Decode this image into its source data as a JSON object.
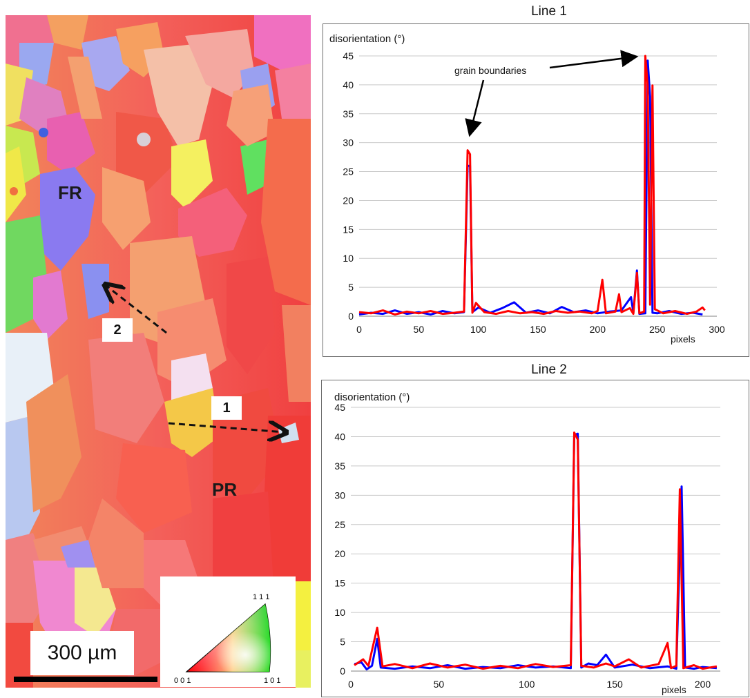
{
  "micrograph": {
    "labels": {
      "fr": "FR",
      "pr": "PR",
      "arrow1": "1",
      "arrow2": "2"
    },
    "scale_bar": "300 µm",
    "ipf_key": {
      "corner_001": "0 0 1",
      "corner_101": "1 0 1",
      "corner_111": "1 1 1"
    }
  },
  "chart_data": [
    {
      "type": "line",
      "title": "Line 1",
      "ylabel": "disorientation (°)",
      "xlabel": "pixels",
      "xlim": [
        0,
        300
      ],
      "ylim": [
        0,
        45
      ],
      "xticks": [
        0,
        50,
        100,
        150,
        200,
        250,
        300
      ],
      "yticks": [
        0,
        5,
        10,
        15,
        20,
        25,
        30,
        35,
        40,
        45
      ],
      "grid": true,
      "annotation": "grain boundaries",
      "series": [
        {
          "color": "#0000ff",
          "points": [
            [
              0,
              0.3
            ],
            [
              10,
              0.6
            ],
            [
              20,
              0.4
            ],
            [
              30,
              1.0
            ],
            [
              40,
              0.4
            ],
            [
              50,
              0.7
            ],
            [
              60,
              0.3
            ],
            [
              70,
              0.9
            ],
            [
              80,
              0.5
            ],
            [
              88,
              0.7
            ],
            [
              91,
              26
            ],
            [
              93,
              26
            ],
            [
              95,
              0.7
            ],
            [
              100,
              1.5
            ],
            [
              110,
              0.6
            ],
            [
              120,
              1.4
            ],
            [
              130,
              2.4
            ],
            [
              140,
              0.6
            ],
            [
              150,
              1.0
            ],
            [
              160,
              0.5
            ],
            [
              170,
              1.6
            ],
            [
              180,
              0.7
            ],
            [
              190,
              1.0
            ],
            [
              200,
              0.5
            ],
            [
              210,
              0.8
            ],
            [
              220,
              1.0
            ],
            [
              228,
              3.3
            ],
            [
              230,
              0.6
            ],
            [
              233,
              7.9
            ],
            [
              235,
              0.4
            ],
            [
              240,
              0.5
            ],
            [
              242,
              44.2
            ],
            [
              244,
              38
            ],
            [
              246,
              0.6
            ],
            [
              250,
              0.5
            ],
            [
              260,
              0.9
            ],
            [
              270,
              0.4
            ],
            [
              280,
              0.6
            ],
            [
              288,
              0.3
            ]
          ]
        },
        {
          "color": "#ff0000",
          "points": [
            [
              0,
              0.7
            ],
            [
              10,
              0.5
            ],
            [
              20,
              1.0
            ],
            [
              30,
              0.3
            ],
            [
              40,
              0.8
            ],
            [
              50,
              0.5
            ],
            [
              60,
              0.9
            ],
            [
              70,
              0.4
            ],
            [
              80,
              0.6
            ],
            [
              88,
              0.8
            ],
            [
              91,
              28.7
            ],
            [
              93,
              28
            ],
            [
              95,
              0.6
            ],
            [
              98,
              2.3
            ],
            [
              105,
              0.7
            ],
            [
              115,
              0.4
            ],
            [
              125,
              0.9
            ],
            [
              135,
              0.5
            ],
            [
              145,
              0.7
            ],
            [
              155,
              0.4
            ],
            [
              165,
              0.9
            ],
            [
              175,
              0.6
            ],
            [
              185,
              0.8
            ],
            [
              195,
              0.5
            ],
            [
              200,
              0.9
            ],
            [
              204,
              6.3
            ],
            [
              207,
              0.5
            ],
            [
              215,
              0.8
            ],
            [
              218,
              3.8
            ],
            [
              220,
              0.7
            ],
            [
              227,
              1.4
            ],
            [
              230,
              0.4
            ],
            [
              233,
              7.5
            ],
            [
              235,
              0.5
            ],
            [
              239,
              0.8
            ],
            [
              240,
              45
            ],
            [
              242,
              39.8
            ],
            [
              244,
              2
            ],
            [
              246,
              39.9
            ],
            [
              248,
              1.2
            ],
            [
              255,
              0.5
            ],
            [
              265,
              0.9
            ],
            [
              275,
              0.4
            ],
            [
              283,
              0.8
            ],
            [
              288,
              1.5
            ],
            [
              290,
              1.0
            ]
          ]
        }
      ]
    },
    {
      "type": "line",
      "title": "Line 2",
      "ylabel": "disorientation (°)",
      "xlabel": "pixels",
      "xlim": [
        0,
        210
      ],
      "ylim": [
        0,
        45
      ],
      "xticks": [
        0,
        50,
        100,
        150,
        200
      ],
      "yticks": [
        0,
        5,
        10,
        15,
        20,
        25,
        30,
        35,
        40,
        45
      ],
      "grid": true,
      "series": [
        {
          "color": "#0000ff",
          "points": [
            [
              2,
              1.2
            ],
            [
              6,
              1.5
            ],
            [
              9,
              0.3
            ],
            [
              12,
              0.9
            ],
            [
              15,
              5.5
            ],
            [
              17,
              0.6
            ],
            [
              25,
              0.4
            ],
            [
              35,
              0.8
            ],
            [
              45,
              0.5
            ],
            [
              55,
              1.0
            ],
            [
              65,
              0.4
            ],
            [
              75,
              0.7
            ],
            [
              85,
              0.5
            ],
            [
              95,
              1.0
            ],
            [
              105,
              0.6
            ],
            [
              115,
              0.8
            ],
            [
              125,
              0.5
            ],
            [
              127,
              40.3
            ],
            [
              129,
              40.5
            ],
            [
              131,
              0.6
            ],
            [
              135,
              1.3
            ],
            [
              140,
              1.0
            ],
            [
              145,
              2.8
            ],
            [
              150,
              0.6
            ],
            [
              160,
              1.1
            ],
            [
              170,
              0.5
            ],
            [
              180,
              0.8
            ],
            [
              185,
              0.4
            ],
            [
              188,
              31.5
            ],
            [
              190,
              0.6
            ],
            [
              195,
              0.4
            ],
            [
              200,
              0.7
            ],
            [
              208,
              0.5
            ]
          ]
        },
        {
          "color": "#ff0000",
          "points": [
            [
              2,
              1.0
            ],
            [
              7,
              2.0
            ],
            [
              10,
              0.9
            ],
            [
              15,
              7.4
            ],
            [
              18,
              0.8
            ],
            [
              25,
              1.2
            ],
            [
              35,
              0.5
            ],
            [
              45,
              1.3
            ],
            [
              55,
              0.6
            ],
            [
              65,
              1.1
            ],
            [
              75,
              0.4
            ],
            [
              85,
              0.9
            ],
            [
              95,
              0.5
            ],
            [
              105,
              1.2
            ],
            [
              115,
              0.7
            ],
            [
              125,
              1.0
            ],
            [
              127,
              40.7
            ],
            [
              129,
              39.5
            ],
            [
              131,
              0.9
            ],
            [
              138,
              0.6
            ],
            [
              145,
              1.3
            ],
            [
              150,
              0.8
            ],
            [
              158,
              2.0
            ],
            [
              165,
              0.6
            ],
            [
              175,
              1.2
            ],
            [
              180,
              4.8
            ],
            [
              182,
              0.5
            ],
            [
              185,
              0.9
            ],
            [
              187,
              31
            ],
            [
              189,
              0.5
            ],
            [
              195,
              1.0
            ],
            [
              200,
              0.4
            ],
            [
              208,
              0.8
            ]
          ]
        }
      ]
    }
  ]
}
